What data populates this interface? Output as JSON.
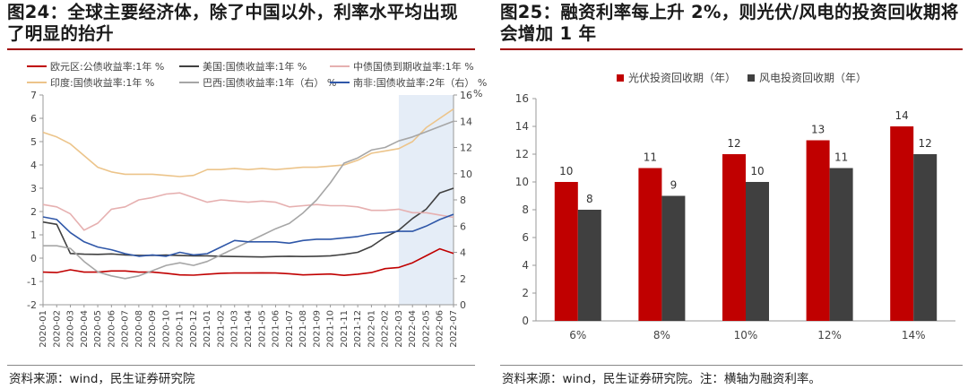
{
  "left": {
    "title": "图24：全球主要经济体，除了中国以外，利率水平均出现了明显的抬升",
    "source": "资料来源：wind，民生证券研究院",
    "chart_data": {
      "type": "line",
      "title": "图24：全球主要经济体，除了中国以外，利率水平均出现了明显的抬升",
      "x": [
        "2020-01",
        "2020-02",
        "2020-03",
        "2020-04",
        "2020-05",
        "2020-06",
        "2020-07",
        "2020-08",
        "2020-09",
        "2020-10",
        "2020-11",
        "2020-12",
        "2021-01",
        "2021-02",
        "2021-03",
        "2021-04",
        "2021-05",
        "2021-06",
        "2021-07",
        "2021-08",
        "2021-09",
        "2021-10",
        "2021-11",
        "2021-12",
        "2022-01",
        "2022-02",
        "2022-03",
        "2022-04",
        "2022-05",
        "2022-06",
        "2022-07"
      ],
      "ylim_left": [
        -2,
        7
      ],
      "ylim_right": [
        0,
        16
      ],
      "yticks_left": [
        "-2",
        "-1",
        "0",
        "1",
        "2",
        "3",
        "4",
        "5",
        "6",
        "7"
      ],
      "yticks_right": [
        "0",
        "2",
        "4",
        "6",
        "8",
        "10",
        "12",
        "14",
        "16"
      ],
      "right_axis_unit": "%",
      "highlight_range": [
        "2022-03",
        "2022-07"
      ],
      "series": [
        {
          "name": "欧元区:公债收益率:1年 %",
          "color": "#c00000",
          "axis": "left",
          "values": [
            -0.6,
            -0.62,
            -0.5,
            -0.6,
            -0.6,
            -0.55,
            -0.55,
            -0.6,
            -0.6,
            -0.65,
            -0.72,
            -0.73,
            -0.69,
            -0.65,
            -0.64,
            -0.64,
            -0.63,
            -0.64,
            -0.67,
            -0.72,
            -0.7,
            -0.68,
            -0.74,
            -0.69,
            -0.62,
            -0.45,
            -0.4,
            -0.2,
            0.1,
            0.4,
            0.2
          ]
        },
        {
          "name": "美国:国债收益率:1年 %",
          "color": "#404040",
          "axis": "left",
          "values": [
            1.55,
            1.45,
            0.2,
            0.17,
            0.16,
            0.18,
            0.14,
            0.12,
            0.12,
            0.13,
            0.11,
            0.1,
            0.1,
            0.08,
            0.07,
            0.06,
            0.05,
            0.07,
            0.08,
            0.07,
            0.08,
            0.1,
            0.16,
            0.25,
            0.5,
            0.9,
            1.2,
            1.7,
            2.1,
            2.8,
            3.0
          ]
        },
        {
          "name": "中债国债到期收益率:1年 %",
          "color": "#e6b0b0",
          "axis": "left",
          "values": [
            2.3,
            2.2,
            1.9,
            1.2,
            1.5,
            2.1,
            2.2,
            2.5,
            2.6,
            2.75,
            2.8,
            2.6,
            2.4,
            2.5,
            2.45,
            2.4,
            2.45,
            2.4,
            2.2,
            2.25,
            2.3,
            2.25,
            2.25,
            2.2,
            2.05,
            2.05,
            2.1,
            1.95,
            1.95,
            1.85,
            1.75
          ]
        },
        {
          "name": "印度:国债收益率:1年 %",
          "color": "#ecc48a",
          "axis": "left",
          "values": [
            5.4,
            5.2,
            4.9,
            4.4,
            3.9,
            3.7,
            3.6,
            3.6,
            3.6,
            3.55,
            3.5,
            3.55,
            3.8,
            3.8,
            3.85,
            3.8,
            3.85,
            3.8,
            3.85,
            3.9,
            3.9,
            3.95,
            4.0,
            4.2,
            4.5,
            4.6,
            4.7,
            5.0,
            5.6,
            6.0,
            6.4
          ]
        },
        {
          "name": "巴西:国债收益率:1年（右） %",
          "color": "#a6a6a6",
          "axis": "right",
          "values": [
            4.5,
            4.5,
            4.3,
            3.3,
            2.5,
            2.2,
            2.0,
            2.2,
            2.6,
            3.0,
            3.2,
            3.0,
            3.3,
            3.8,
            4.3,
            4.8,
            5.3,
            5.8,
            6.2,
            7.0,
            8.0,
            9.3,
            10.8,
            11.2,
            11.8,
            12.0,
            12.5,
            12.8,
            13.2,
            13.6,
            14.0
          ]
        },
        {
          "name": "南非:国债收益率:2年（右） %",
          "color": "#2f57a8",
          "axis": "right",
          "values": [
            6.7,
            6.5,
            5.5,
            4.8,
            4.4,
            4.2,
            3.9,
            3.7,
            3.8,
            3.7,
            4.0,
            3.8,
            3.9,
            4.4,
            4.9,
            4.8,
            4.8,
            4.8,
            4.7,
            4.9,
            5.0,
            5.0,
            5.1,
            5.2,
            5.4,
            5.5,
            5.6,
            5.6,
            6.0,
            6.5,
            6.9
          ]
        }
      ]
    }
  },
  "right": {
    "title": "图25：融资利率每上升 2%，则光伏/风电的投资回收期将会增加 1 年",
    "source": "资料来源：wind，民生证券研究院。注：横轴为融资利率。",
    "chart_data": {
      "type": "bar",
      "title": "图25：融资利率每上升 2%，则光伏/风电的投资回收期将会增加 1 年",
      "categories": [
        "6%",
        "8%",
        "10%",
        "12%",
        "14%"
      ],
      "series": [
        {
          "name": "光伏投资回收期（年）",
          "color": "#c00000",
          "values": [
            10,
            11,
            12,
            13,
            14
          ]
        },
        {
          "name": "风电投资回收期（年）",
          "color": "#404040",
          "values": [
            8,
            9,
            10,
            11,
            12
          ]
        }
      ],
      "ylim": [
        0,
        16
      ],
      "yticks": [
        "0",
        "2",
        "4",
        "6",
        "8",
        "10",
        "12",
        "14",
        "16"
      ],
      "xlabel": "",
      "ylabel": ""
    }
  }
}
